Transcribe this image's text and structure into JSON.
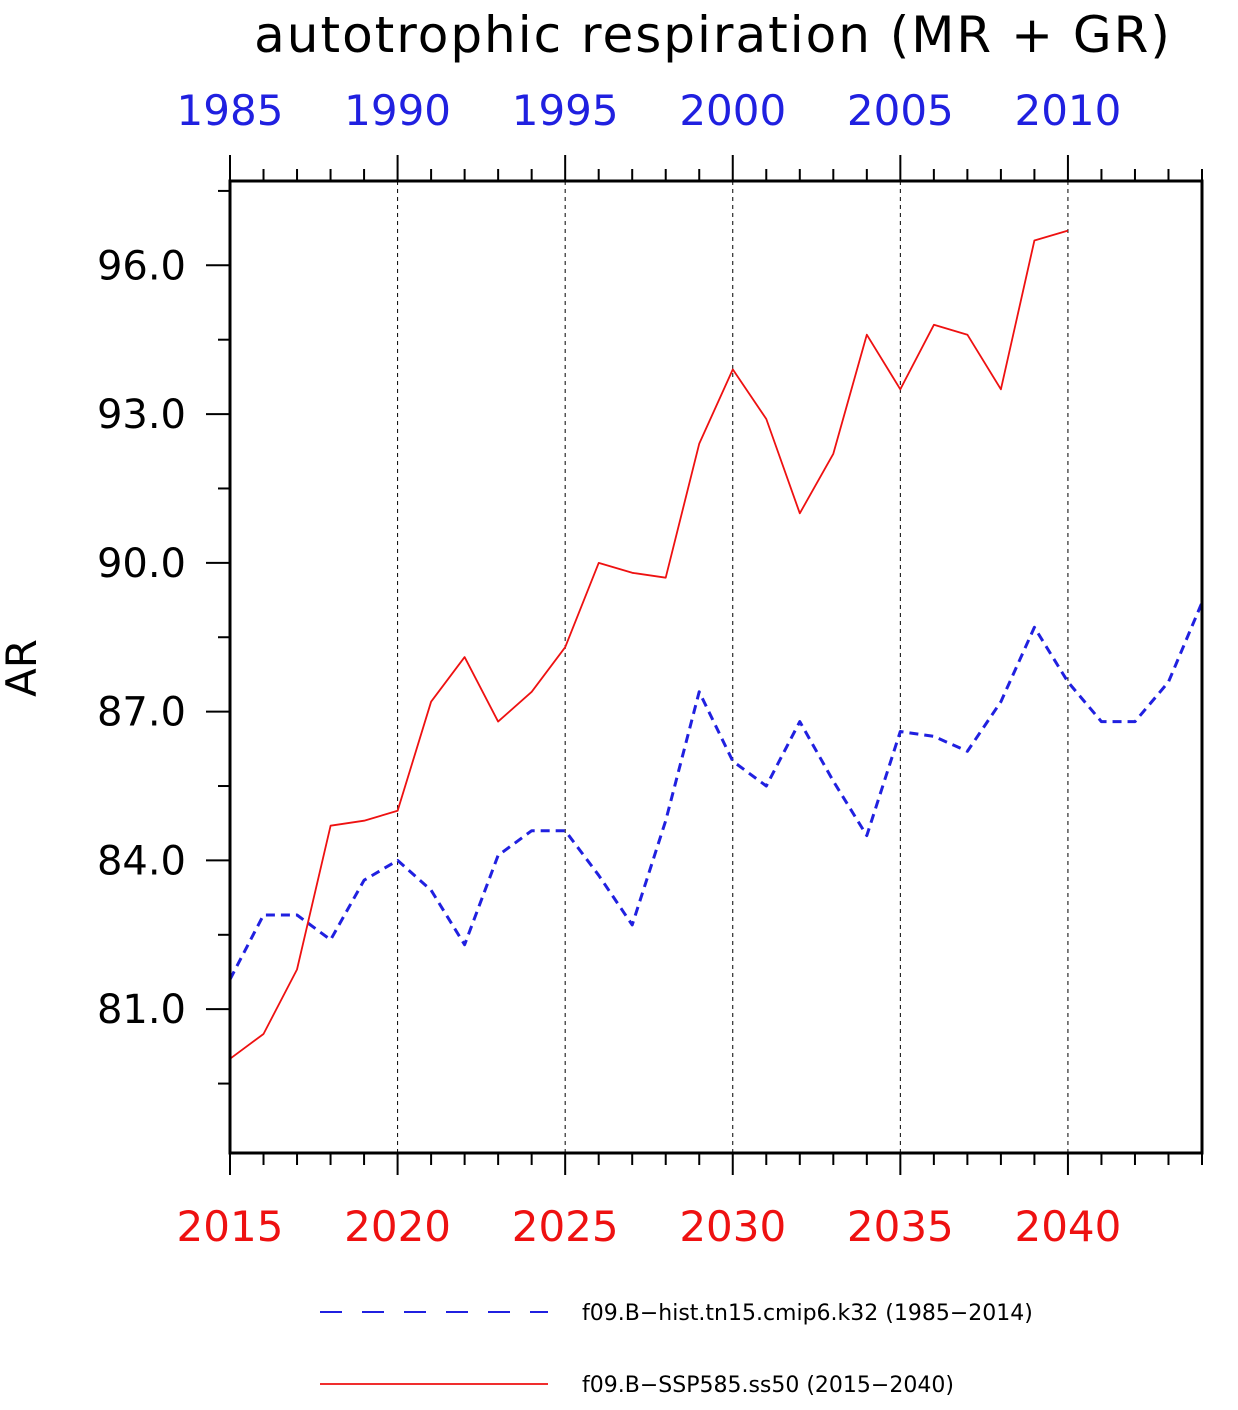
{
  "chart_data": {
    "type": "line",
    "title": "autotrophic respiration (MR + GR)",
    "ylabel": "AR",
    "xlabel": "",
    "ylim": [
      78.1,
      97.7
    ],
    "yticks": [
      81.0,
      84.0,
      87.0,
      90.0,
      93.0,
      96.0
    ],
    "ytick_labels": [
      "81.0",
      "84.0",
      "87.0",
      "90.0",
      "93.0",
      "96.0"
    ],
    "x_bottom": {
      "lim": [
        2015,
        2044
      ],
      "ticks": [
        2015,
        2020,
        2025,
        2030,
        2035,
        2040
      ],
      "labels": [
        "2015",
        "2020",
        "2025",
        "2030",
        "2035",
        "2040"
      ],
      "color": "#ee1111"
    },
    "x_top": {
      "lim": [
        1985,
        2014
      ],
      "ticks": [
        1985,
        1990,
        1995,
        2000,
        2005,
        2010
      ],
      "labels": [
        "1985",
        "1990",
        "1995",
        "2000",
        "2005",
        "2010"
      ],
      "color": "#2020e0"
    },
    "grid": "vertical dashed at major ticks",
    "legend_position": "bottom",
    "series": [
      {
        "name": "f09.B−hist.tn15.cmip6.k32 (1985−2014)",
        "axis": "top",
        "color": "#2020e0",
        "style": "dashed",
        "x": [
          1985,
          1986,
          1987,
          1988,
          1989,
          1990,
          1991,
          1992,
          1993,
          1994,
          1995,
          1996,
          1997,
          1998,
          1999,
          2000,
          2001,
          2002,
          2003,
          2004,
          2005,
          2006,
          2007,
          2008,
          2009,
          2010,
          2011,
          2012,
          2013,
          2014
        ],
        "values": [
          81.6,
          82.9,
          82.9,
          82.4,
          83.6,
          84.0,
          83.4,
          82.3,
          84.1,
          84.6,
          84.6,
          83.7,
          82.7,
          84.8,
          87.4,
          86.0,
          85.5,
          86.8,
          85.6,
          84.5,
          86.6,
          86.5,
          86.2,
          87.2,
          88.7,
          87.6,
          86.8,
          86.8,
          87.6,
          89.2
        ]
      },
      {
        "name": "f09.B−SSP585.ss50 (2015−2040)",
        "axis": "bottom",
        "color": "#ee1111",
        "style": "solid",
        "x": [
          2015,
          2016,
          2017,
          2018,
          2019,
          2020,
          2021,
          2022,
          2023,
          2024,
          2025,
          2026,
          2027,
          2028,
          2029,
          2030,
          2031,
          2032,
          2033,
          2034,
          2035,
          2036,
          2037,
          2038,
          2039,
          2040
        ],
        "values": [
          80.0,
          80.5,
          81.8,
          84.7,
          84.8,
          85.0,
          87.2,
          88.1,
          86.8,
          87.4,
          88.3,
          90.0,
          89.8,
          89.7,
          92.4,
          93.9,
          92.9,
          91.0,
          92.2,
          94.6,
          93.5,
          94.8,
          94.6,
          93.5,
          96.5,
          96.7
        ]
      }
    ]
  }
}
